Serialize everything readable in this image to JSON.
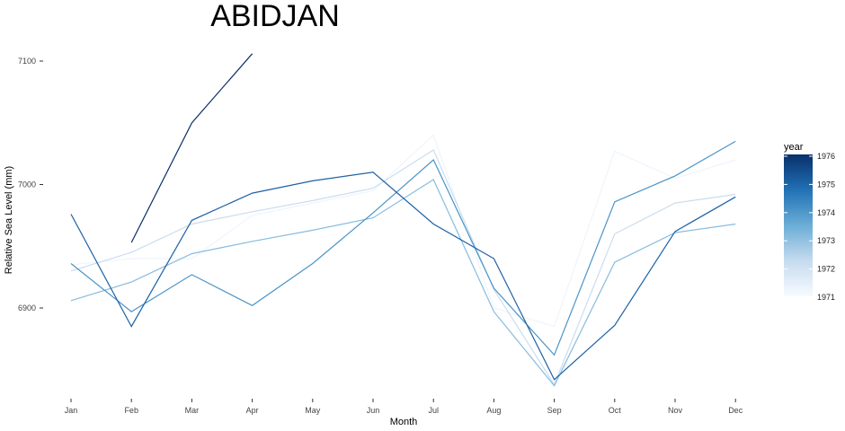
{
  "chart_data": {
    "type": "line",
    "title": "ABIDJAN",
    "xlabel": "Month",
    "ylabel": "Relative Sea Level (mm)",
    "categories": [
      "Jan",
      "Feb",
      "Mar",
      "Apr",
      "May",
      "Jun",
      "Jul",
      "Aug",
      "Sep",
      "Oct",
      "Nov",
      "Dec"
    ],
    "y_ticks": [
      6900,
      7000,
      7100
    ],
    "ylim": [
      6832,
      7110
    ],
    "grid": false,
    "legend": {
      "title": "year",
      "position": "right",
      "type": "colorbar",
      "ticks": [
        1971,
        1972,
        1973,
        1974,
        1975,
        1976
      ],
      "range": [
        1971,
        1976
      ],
      "colors": [
        "#f7fbff",
        "#c6dbef",
        "#6baed6",
        "#2171b5",
        "#08306b"
      ]
    },
    "series": [
      {
        "year": 1971,
        "color": "#eef5fc",
        "values": [
          6935,
          6940,
          6940,
          6975,
          6985,
          6995,
          7040,
          6900,
          6885,
          7027,
          7005,
          7020
        ]
      },
      {
        "year": 1972,
        "color": "#c9ddf0",
        "values": [
          6930,
          6945,
          6968,
          6978,
          6987,
          6997,
          7028,
          6915,
          6838,
          6960,
          6985,
          6992
        ]
      },
      {
        "year": 1973,
        "color": "#86bcdf",
        "values": [
          6906,
          6921,
          6944,
          6954,
          6963,
          6973,
          7004,
          6897,
          6837,
          6937,
          6961,
          6968
        ]
      },
      {
        "year": 1974,
        "color": "#4a94c8",
        "values": [
          6936,
          6897,
          6927,
          6902,
          6936,
          6977,
          7020,
          6916,
          6862,
          6986,
          7007,
          7035
        ]
      },
      {
        "year": 1975,
        "color": "#1d61a5",
        "values": [
          6976,
          6885,
          6971,
          6993,
          7003,
          7010,
          6968,
          6940,
          6842,
          6886,
          6962,
          6990
        ]
      },
      {
        "year": 1976,
        "color": "#0b2f66",
        "values": [
          null,
          6953,
          7050,
          7106,
          null,
          null,
          null,
          null,
          null,
          null,
          null,
          null
        ]
      }
    ]
  }
}
